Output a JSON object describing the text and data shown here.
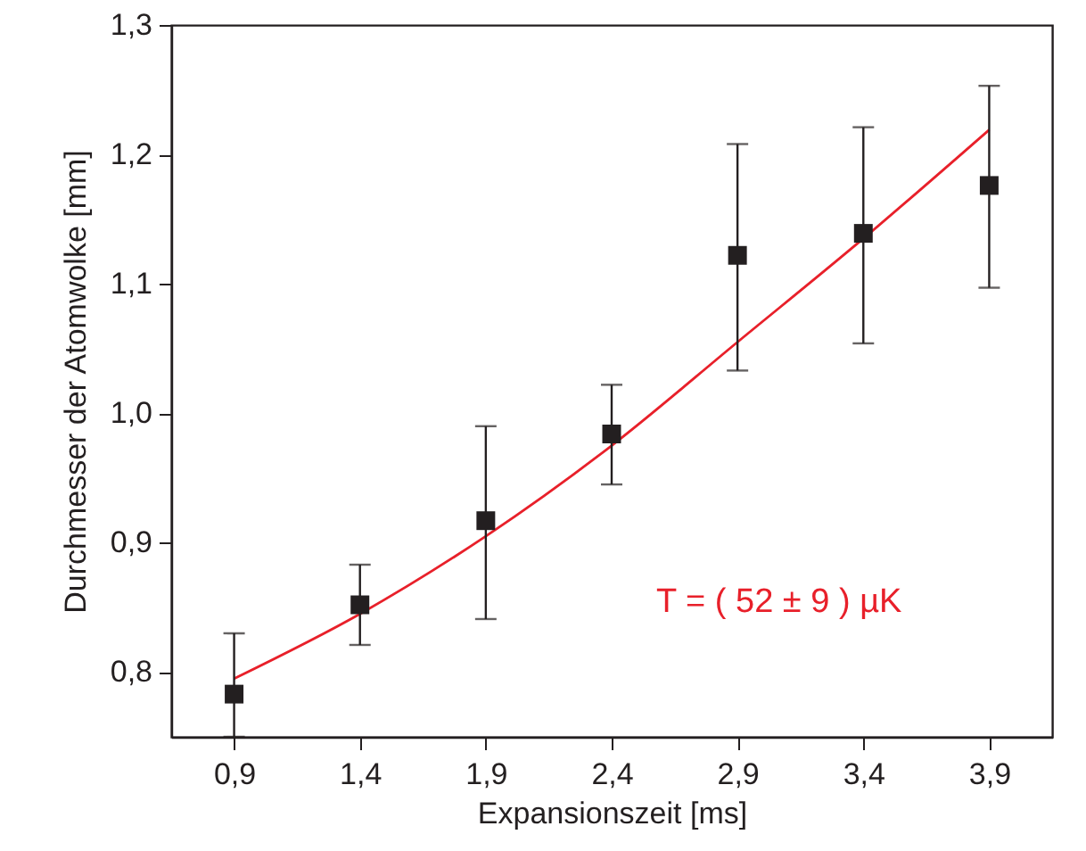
{
  "chart_data": {
    "type": "scatter",
    "xlabel": "Expansionszeit [ms]",
    "ylabel": "Durchmesser der Atomwolke [mm]",
    "xlim": [
      0.65,
      4.15
    ],
    "ylim": [
      0.75,
      1.3
    ],
    "xticks": [
      {
        "value": 0.9,
        "label": "0,9"
      },
      {
        "value": 1.4,
        "label": "1,4"
      },
      {
        "value": 1.9,
        "label": "1,9"
      },
      {
        "value": 2.4,
        "label": "2,4"
      },
      {
        "value": 2.9,
        "label": "2,9"
      },
      {
        "value": 3.4,
        "label": "3,4"
      },
      {
        "value": 3.9,
        "label": "3,9"
      }
    ],
    "yticks": [
      {
        "value": 0.8,
        "label": "0,8"
      },
      {
        "value": 0.9,
        "label": "0,9"
      },
      {
        "value": 1.0,
        "label": "1,0"
      },
      {
        "value": 1.1,
        "label": "1,1"
      },
      {
        "value": 1.2,
        "label": "1,2"
      },
      {
        "value": 1.3,
        "label": "1,3"
      }
    ],
    "series": [
      {
        "marker": "square",
        "color": "#231f20",
        "x": [
          0.9,
          1.4,
          1.9,
          2.4,
          2.9,
          3.4,
          3.9
        ],
        "values": [
          0.783,
          0.852,
          0.917,
          0.984,
          1.122,
          1.139,
          1.176
        ],
        "errors": [
          [
            0.75,
            0.83
          ],
          [
            0.821,
            0.883
          ],
          [
            0.841,
            0.99
          ],
          [
            0.945,
            1.022
          ],
          [
            1.033,
            1.208
          ],
          [
            1.054,
            1.221
          ],
          [
            1.097,
            1.253
          ]
        ]
      },
      {
        "type": "line",
        "color": "#e8202a",
        "x": [
          0.9,
          1.4,
          1.9,
          2.4,
          2.9,
          3.4,
          3.9
        ],
        "values": [
          0.795,
          0.845,
          0.905,
          0.975,
          1.055,
          1.135,
          1.219
        ]
      }
    ],
    "annotations": [
      "T = ( 52 ± 9 ) µK"
    ]
  }
}
